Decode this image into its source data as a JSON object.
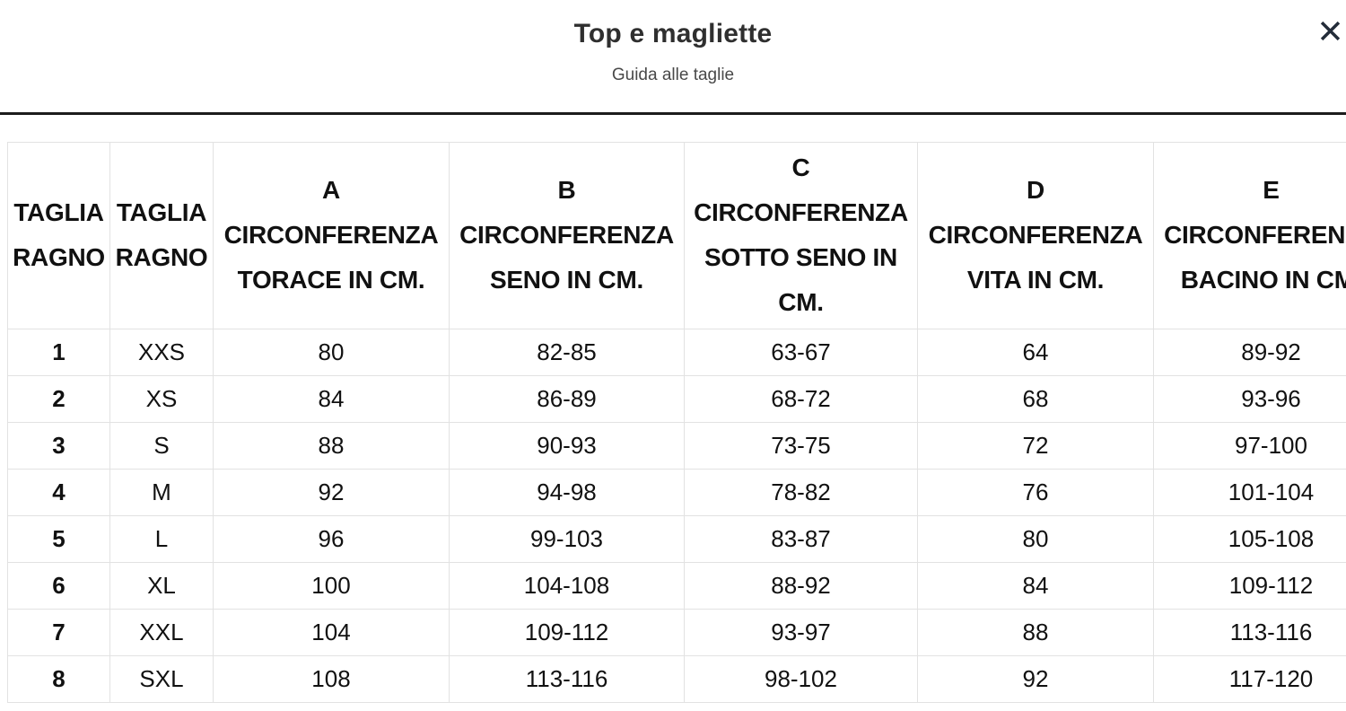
{
  "modal": {
    "title": "Top e magliette",
    "subtitle": "Guida alle taglie"
  },
  "table": {
    "columns": [
      {
        "lines": [
          "TAGLIA",
          "RAGNO"
        ]
      },
      {
        "lines": [
          "TAGLIA",
          "RAGNO"
        ]
      },
      {
        "lines": [
          "A",
          "CIRCONFERENZA",
          "TORACE IN CM."
        ]
      },
      {
        "lines": [
          "B",
          "CIRCONFERENZA",
          "SENO IN CM."
        ]
      },
      {
        "lines": [
          "C",
          "CIRCONFERENZA",
          "SOTTO SENO IN",
          "CM."
        ]
      },
      {
        "lines": [
          "D",
          "CIRCONFERENZA",
          "VITA IN CM."
        ]
      },
      {
        "lines": [
          "E",
          "CIRCONFERENZA",
          "BACINO IN CM."
        ]
      }
    ],
    "rows": [
      [
        "1",
        "XXS",
        "80",
        "82-85",
        "63-67",
        "64",
        "89-92"
      ],
      [
        "2",
        "XS",
        "84",
        "86-89",
        "68-72",
        "68",
        "93-96"
      ],
      [
        "3",
        "S",
        "88",
        "90-93",
        "73-75",
        "72",
        "97-100"
      ],
      [
        "4",
        "M",
        "92",
        "94-98",
        "78-82",
        "76",
        "101-104"
      ],
      [
        "5",
        "L",
        "96",
        "99-103",
        "83-87",
        "80",
        "105-108"
      ],
      [
        "6",
        "XL",
        "100",
        "104-108",
        "88-92",
        "84",
        "109-112"
      ],
      [
        "7",
        "XXL",
        "104",
        "109-112",
        "93-97",
        "88",
        "113-116"
      ],
      [
        "8",
        "SXL",
        "108",
        "113-116",
        "98-102",
        "92",
        "117-120"
      ]
    ]
  },
  "colors": {
    "divider": "#1c1c1c",
    "table_border": "#e2e2e2",
    "text": "#111111",
    "title": "#2f2f2f",
    "subtitle": "#494949",
    "close_icon": "#232c39"
  }
}
